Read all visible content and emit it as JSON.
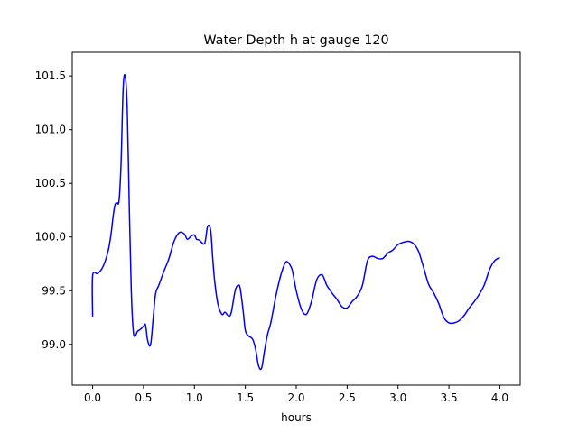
{
  "chart_data": {
    "type": "line",
    "title": "Water Depth h at gauge 120",
    "xlabel": "hours",
    "ylabel": "",
    "xlim": [
      -0.2,
      4.2
    ],
    "ylim": [
      98.62,
      101.72
    ],
    "xticks": [
      0.0,
      0.5,
      1.0,
      1.5,
      2.0,
      2.5,
      3.0,
      3.5,
      4.0
    ],
    "xtick_labels": [
      "0.0",
      "0.5",
      "1.0",
      "1.5",
      "2.0",
      "2.5",
      "3.0",
      "3.5",
      "4.0"
    ],
    "yticks": [
      99.0,
      99.5,
      100.0,
      100.5,
      101.0,
      101.5
    ],
    "ytick_labels": [
      "99.0",
      "99.5",
      "100.0",
      "100.5",
      "101.0",
      "101.5"
    ],
    "grid": false,
    "series": [
      {
        "color": "#0000ff",
        "x": [
          0.0,
          0.0,
          0.05,
          0.1,
          0.15,
          0.18,
          0.2,
          0.22,
          0.24,
          0.26,
          0.28,
          0.3,
          0.32,
          0.34,
          0.36,
          0.38,
          0.4,
          0.42,
          0.44,
          0.47,
          0.5,
          0.52,
          0.54,
          0.57,
          0.6,
          0.62,
          0.65,
          0.7,
          0.75,
          0.8,
          0.85,
          0.9,
          0.93,
          0.97,
          1.0,
          1.02,
          1.05,
          1.1,
          1.13,
          1.16,
          1.18,
          1.2,
          1.23,
          1.27,
          1.3,
          1.33,
          1.36,
          1.4,
          1.43,
          1.45,
          1.48,
          1.5,
          1.53,
          1.57,
          1.6,
          1.63,
          1.66,
          1.69,
          1.72,
          1.75,
          1.8,
          1.85,
          1.9,
          1.95,
          1.97,
          2.0,
          2.05,
          2.1,
          2.15,
          2.2,
          2.25,
          2.28,
          2.3,
          2.35,
          2.4,
          2.45,
          2.5,
          2.55,
          2.6,
          2.65,
          2.7,
          2.75,
          2.8,
          2.85,
          2.9,
          2.95,
          3.0,
          3.05,
          3.1,
          3.15,
          3.2,
          3.25,
          3.3,
          3.35,
          3.4,
          3.45,
          3.5,
          3.55,
          3.6,
          3.65,
          3.7,
          3.75,
          3.8,
          3.85,
          3.9,
          3.95,
          4.0
        ],
        "y": [
          99.26,
          99.64,
          99.66,
          99.72,
          99.86,
          100.02,
          100.18,
          100.3,
          100.32,
          100.34,
          100.7,
          101.38,
          101.5,
          101.2,
          100.3,
          99.5,
          99.12,
          99.08,
          99.12,
          99.14,
          99.17,
          99.18,
          99.04,
          99.0,
          99.3,
          99.48,
          99.55,
          99.68,
          99.8,
          99.96,
          100.04,
          100.03,
          99.98,
          100.01,
          100.02,
          99.98,
          99.97,
          99.94,
          100.1,
          100.06,
          99.8,
          99.58,
          99.38,
          99.28,
          99.3,
          99.27,
          99.29,
          99.5,
          99.55,
          99.52,
          99.3,
          99.13,
          99.08,
          99.05,
          98.96,
          98.8,
          98.78,
          98.95,
          99.1,
          99.2,
          99.45,
          99.65,
          99.77,
          99.72,
          99.65,
          99.5,
          99.33,
          99.28,
          99.4,
          99.6,
          99.65,
          99.6,
          99.55,
          99.48,
          99.42,
          99.35,
          99.34,
          99.4,
          99.45,
          99.55,
          99.78,
          99.82,
          99.8,
          99.8,
          99.85,
          99.88,
          99.93,
          99.95,
          99.96,
          99.94,
          99.87,
          99.72,
          99.56,
          99.48,
          99.38,
          99.25,
          99.2,
          99.2,
          99.22,
          99.27,
          99.34,
          99.4,
          99.47,
          99.56,
          99.7,
          99.78,
          99.81
        ]
      }
    ]
  }
}
